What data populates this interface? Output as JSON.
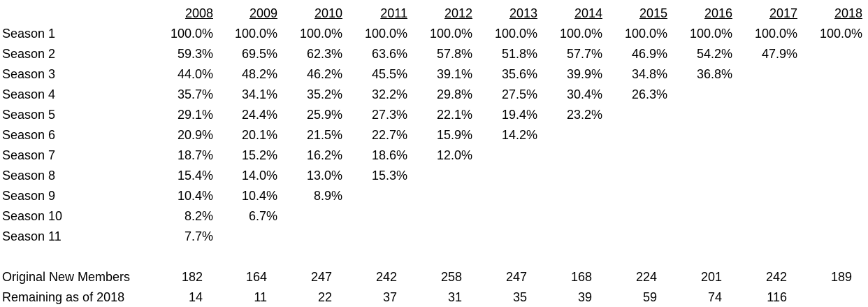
{
  "table": {
    "years": [
      "2008",
      "2009",
      "2010",
      "2011",
      "2012",
      "2013",
      "2014",
      "2015",
      "2016",
      "2017",
      "2018"
    ],
    "season_rows": [
      {
        "label": "Season 1",
        "values": [
          "100.0%",
          "100.0%",
          "100.0%",
          "100.0%",
          "100.0%",
          "100.0%",
          "100.0%",
          "100.0%",
          "100.0%",
          "100.0%",
          "100.0%"
        ]
      },
      {
        "label": "Season 2",
        "values": [
          "59.3%",
          "69.5%",
          "62.3%",
          "63.6%",
          "57.8%",
          "51.8%",
          "57.7%",
          "46.9%",
          "54.2%",
          "47.9%"
        ]
      },
      {
        "label": "Season 3",
        "values": [
          "44.0%",
          "48.2%",
          "46.2%",
          "45.5%",
          "39.1%",
          "35.6%",
          "39.9%",
          "34.8%",
          "36.8%"
        ]
      },
      {
        "label": "Season 4",
        "values": [
          "35.7%",
          "34.1%",
          "35.2%",
          "32.2%",
          "29.8%",
          "27.5%",
          "30.4%",
          "26.3%"
        ]
      },
      {
        "label": "Season 5",
        "values": [
          "29.1%",
          "24.4%",
          "25.9%",
          "27.3%",
          "22.1%",
          "19.4%",
          "23.2%"
        ]
      },
      {
        "label": "Season 6",
        "values": [
          "20.9%",
          "20.1%",
          "21.5%",
          "22.7%",
          "15.9%",
          "14.2%"
        ]
      },
      {
        "label": "Season 7",
        "values": [
          "18.7%",
          "15.2%",
          "16.2%",
          "18.6%",
          "12.0%"
        ]
      },
      {
        "label": "Season 8",
        "values": [
          "15.4%",
          "14.0%",
          "13.0%",
          "15.3%"
        ]
      },
      {
        "label": "Season 9",
        "values": [
          "10.4%",
          "10.4%",
          "8.9%"
        ]
      },
      {
        "label": "Season 10",
        "values": [
          "8.2%",
          "6.7%"
        ]
      },
      {
        "label": "Season 11",
        "values": [
          "7.7%"
        ]
      }
    ],
    "summary_rows": [
      {
        "label": "Original New Members",
        "values": [
          "182",
          "164",
          "247",
          "242",
          "258",
          "247",
          "168",
          "224",
          "201",
          "242",
          "189"
        ]
      },
      {
        "label": "Remaining as of 2018",
        "values": [
          "14",
          "11",
          "22",
          "37",
          "31",
          "35",
          "39",
          "59",
          "74",
          "116"
        ]
      }
    ]
  }
}
